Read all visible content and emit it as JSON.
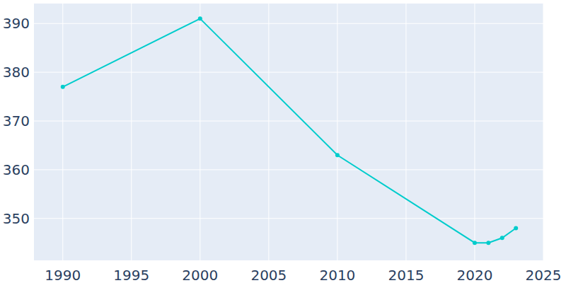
{
  "chart_data": {
    "type": "line",
    "x": [
      1990,
      2000,
      2010,
      2020,
      2021,
      2022,
      2023
    ],
    "values": [
      377,
      391,
      363,
      345,
      345,
      346,
      348
    ],
    "color": "#00cccc",
    "marker": "circle",
    "xlim": [
      1987.9,
      2025
    ],
    "xticks": [
      1990,
      1995,
      2000,
      2005,
      2010,
      2015,
      2020,
      2025
    ],
    "ylim": [
      341.4,
      394.1
    ],
    "yticks": [
      350,
      360,
      370,
      380,
      390
    ],
    "grid": true
  }
}
